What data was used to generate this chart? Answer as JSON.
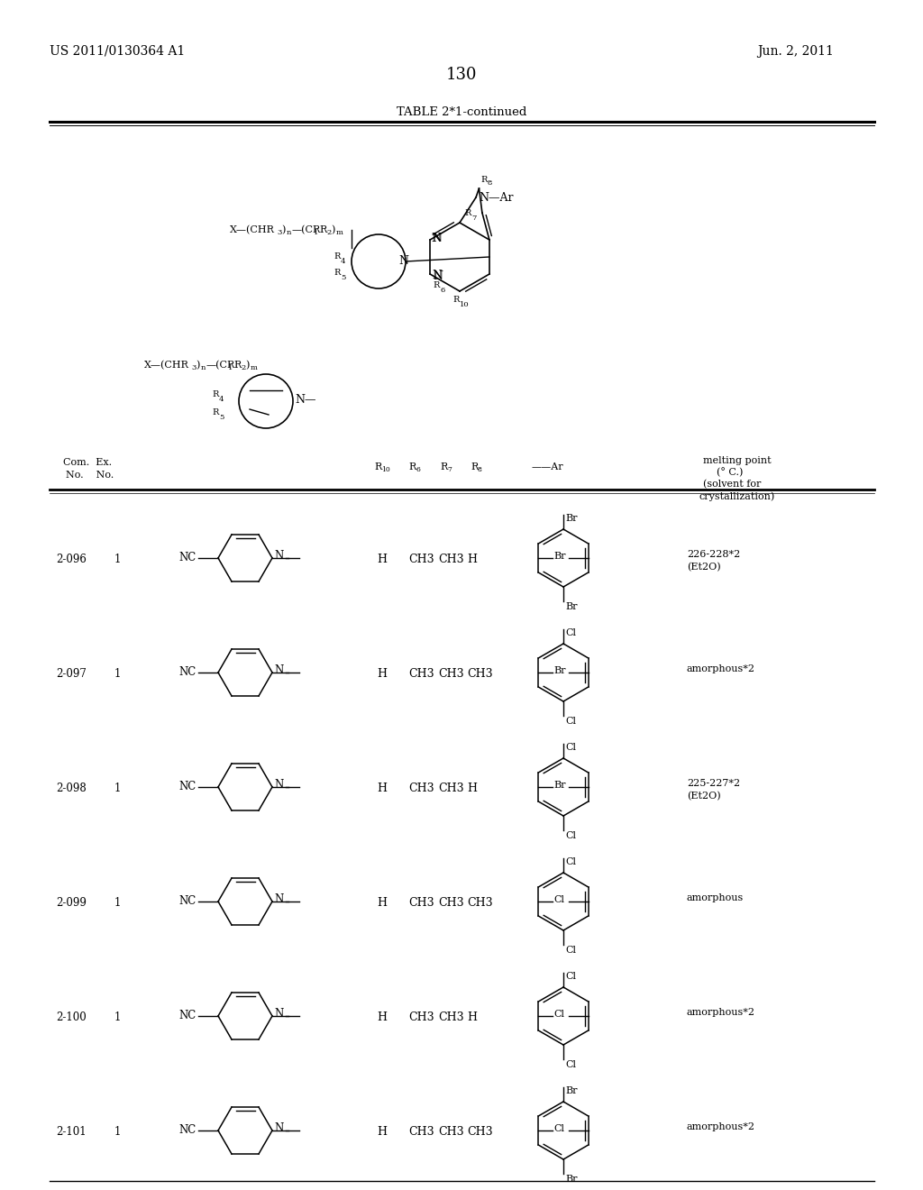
{
  "page_number": "130",
  "patent_number": "US 2011/0130364 A1",
  "patent_date": "Jun. 2, 2011",
  "table_title": "TABLE 2*1-continued",
  "rows": [
    {
      "comp_no": "2-096",
      "ex_no": "1",
      "R10": "H",
      "R6": "CH3",
      "R7": "CH3",
      "R8": "H",
      "ar_top": "Br",
      "ar_right": "Br",
      "ar_bot": "Br",
      "melting": "226-228*2\n(Et2O)"
    },
    {
      "comp_no": "2-097",
      "ex_no": "1",
      "R10": "H",
      "R6": "CH3",
      "R7": "CH3",
      "R8": "CH3",
      "ar_top": "Cl",
      "ar_right": "Br",
      "ar_bot": "Cl",
      "melting": "amorphous*2"
    },
    {
      "comp_no": "2-098",
      "ex_no": "1",
      "R10": "H",
      "R6": "CH3",
      "R7": "CH3",
      "R8": "H",
      "ar_top": "Cl",
      "ar_right": "Br",
      "ar_bot": "Cl",
      "melting": "225-227*2\n(Et2O)"
    },
    {
      "comp_no": "2-099",
      "ex_no": "1",
      "R10": "H",
      "R6": "CH3",
      "R7": "CH3",
      "R8": "CH3",
      "ar_top": "Cl",
      "ar_right": "Cl",
      "ar_bot": "Cl",
      "melting": "amorphous"
    },
    {
      "comp_no": "2-100",
      "ex_no": "1",
      "R10": "H",
      "R6": "CH3",
      "R7": "CH3",
      "R8": "H",
      "ar_top": "Cl",
      "ar_right": "Cl",
      "ar_bot": "Cl",
      "melting": "amorphous*2"
    },
    {
      "comp_no": "2-101",
      "ex_no": "1",
      "R10": "H",
      "R6": "CH3",
      "R7": "CH3",
      "R8": "CH3",
      "ar_top": "Br",
      "ar_right": "Cl",
      "ar_bot": "Br",
      "melting": "amorphous*2"
    }
  ]
}
